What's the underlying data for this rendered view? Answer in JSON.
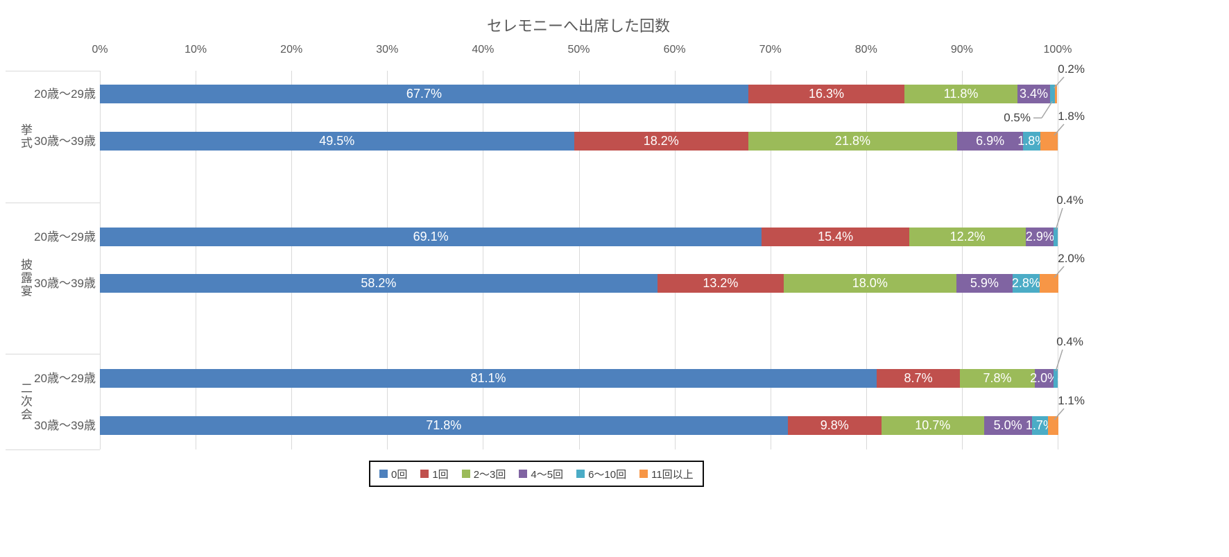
{
  "chart_data": {
    "type": "bar",
    "orientation": "horizontal-stacked",
    "title": "セレモニーへ出席した回数",
    "group_labels": [
      "挙式",
      "披露宴",
      "二次会"
    ],
    "categories": [
      {
        "group": "挙式",
        "label": "20歳〜29歳"
      },
      {
        "group": "挙式",
        "label": "30歳〜39歳"
      },
      {
        "group": "披露宴",
        "label": "20歳〜29歳"
      },
      {
        "group": "披露宴",
        "label": "30歳〜39歳"
      },
      {
        "group": "二次会",
        "label": "20歳〜29歳"
      },
      {
        "group": "二次会",
        "label": "30歳〜39歳"
      }
    ],
    "series": [
      {
        "name": "0回",
        "color": "#4E81BD",
        "values": [
          67.7,
          49.5,
          69.1,
          58.2,
          81.1,
          71.8
        ]
      },
      {
        "name": "1回",
        "color": "#C0504D",
        "values": [
          16.3,
          18.2,
          15.4,
          13.2,
          8.7,
          9.8
        ]
      },
      {
        "name": "2〜3回",
        "color": "#9BBB59",
        "values": [
          11.8,
          21.8,
          12.2,
          18.0,
          7.8,
          10.7
        ]
      },
      {
        "name": "4〜5回",
        "color": "#8064A2",
        "values": [
          3.4,
          6.9,
          2.9,
          5.9,
          2.0,
          5.0
        ]
      },
      {
        "name": "6〜10回",
        "color": "#4BACC6",
        "values": [
          0.5,
          1.8,
          0.4,
          2.8,
          0.4,
          1.7
        ]
      },
      {
        "name": "11回以上",
        "color": "#F79646",
        "values": [
          0.2,
          1.8,
          0.0,
          2.0,
          0.0,
          1.1
        ]
      }
    ],
    "xlim": [
      0,
      100
    ],
    "x_ticks": [
      "0%",
      "10%",
      "20%",
      "30%",
      "40%",
      "50%",
      "60%",
      "70%",
      "80%",
      "90%",
      "100%"
    ],
    "grid": true,
    "legend_position": "bottom",
    "data_label_format": "0.0%",
    "callouts": [
      {
        "category": 0,
        "series": "6〜10回",
        "label": "0.5%",
        "placement": "below"
      },
      {
        "category": 0,
        "series": "11回以上",
        "label": "0.2%",
        "placement": "above"
      },
      {
        "category": 1,
        "series": "11回以上",
        "label": "1.8%",
        "placement": "above"
      },
      {
        "category": 2,
        "series": "6〜10回",
        "label": "0.4%",
        "placement": "above-far"
      },
      {
        "category": 3,
        "series": "11回以上",
        "label": "2.0%",
        "placement": "above"
      },
      {
        "category": 4,
        "series": "6〜10回",
        "label": "0.4%",
        "placement": "above-far"
      },
      {
        "category": 5,
        "series": "11回以上",
        "label": "1.1%",
        "placement": "above"
      }
    ],
    "colors": {
      "gridline": "#D9D9D9",
      "axis_text": "#595959",
      "title_text": "#595959",
      "callout_text": "#404040",
      "leader_line": "#A6A6A6",
      "bar_label_text": "#FFFFFF",
      "legend_border": "#0D0D0D"
    }
  }
}
